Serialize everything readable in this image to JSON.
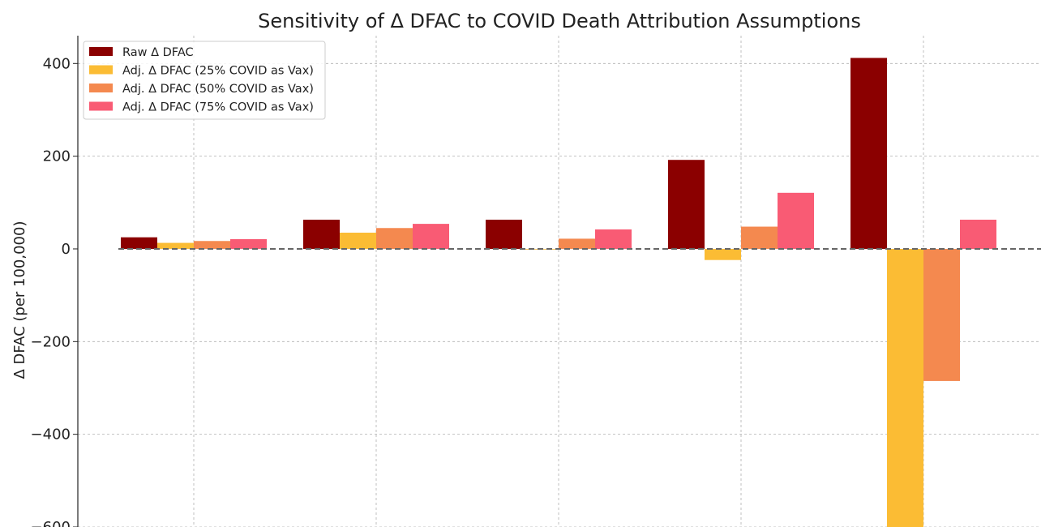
{
  "chart_data": {
    "type": "bar",
    "title": "Sensitivity of Δ DFAC to COVID Death Attribution Assumptions",
    "xlabel": "",
    "ylabel": "Δ DFAC (per 100,000)",
    "ylim": [
      -600,
      460
    ],
    "yticks": [
      -600,
      -400,
      -200,
      0,
      200,
      400
    ],
    "ytick_labels": [
      "−600",
      "−400",
      "−200",
      "0",
      "200",
      "400"
    ],
    "categories": [
      "",
      "",
      "",
      "",
      ""
    ],
    "grid": true,
    "zero_line": "dashed",
    "legend_position": "top-left",
    "series": [
      {
        "name": "Raw Δ DFAC",
        "color": "#8b0000",
        "values": [
          25,
          63,
          63,
          192,
          412
        ]
      },
      {
        "name": "Adj. Δ DFAC (25% COVID as Vax)",
        "color": "#fbbc34",
        "values": [
          13,
          35,
          0,
          -24,
          -605
        ]
      },
      {
        "name": "Adj. Δ DFAC (50% COVID as Vax)",
        "color": "#f4894f",
        "values": [
          17,
          45,
          22,
          48,
          -285
        ]
      },
      {
        "name": "Adj. Δ DFAC (75% COVID as Vax)",
        "color": "#f95b74",
        "values": [
          21,
          54,
          42,
          121,
          63
        ]
      }
    ]
  }
}
